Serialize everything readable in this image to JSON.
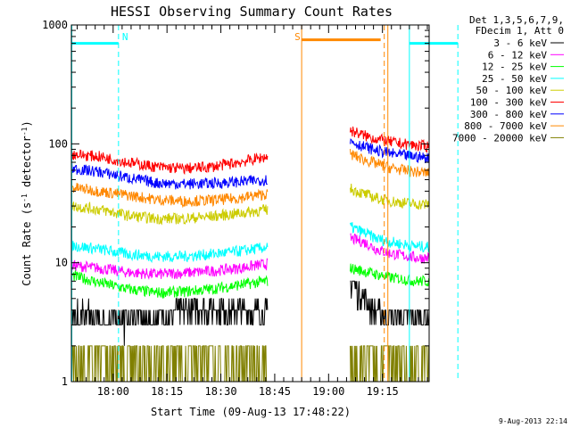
{
  "chart_data": {
    "type": "line",
    "title": "HESSI Observing Summary Count Rates",
    "xlabel": "Start Time (09-Aug-13 17:48:22)",
    "ylabel": "Count Rate (s⁻¹ detector⁻¹)",
    "y_scale": "log",
    "ylim": [
      1,
      1000
    ],
    "y_ticks": [
      {
        "value": 1,
        "label": "1"
      },
      {
        "value": 10,
        "label": "10"
      },
      {
        "value": 100,
        "label": "100"
      },
      {
        "value": 1000,
        "label": "1000"
      }
    ],
    "x_range_minutes": [
      "17:48",
      "19:28"
    ],
    "x_ticks": [
      {
        "minute": 1080,
        "label": "18:00"
      },
      {
        "minute": 1095,
        "label": "18:15"
      },
      {
        "minute": 1110,
        "label": "18:30"
      },
      {
        "minute": 1125,
        "label": "18:45"
      },
      {
        "minute": 1140,
        "label": "19:00"
      },
      {
        "minute": 1155,
        "label": "19:15"
      }
    ],
    "legend": {
      "placement": "right",
      "header": [
        "Det 1,3,5,6,7,9,",
        "FDecim 1, Att 0"
      ]
    },
    "data_gap": [
      "18:43",
      "19:06"
    ],
    "series": [
      {
        "name": "3 - 6 keV",
        "color": "#000000",
        "before": [
          3.5,
          3.3,
          3.3,
          3.4,
          4.0,
          4.2,
          4.0,
          3.8
        ],
        "after": [
          7.0,
          5.0,
          3.8,
          3.5,
          3.5,
          3.4,
          3.4
        ]
      },
      {
        "name": "6 - 12 keV",
        "color": "#ff00ff",
        "before": [
          9.5,
          9.0,
          8.3,
          8.0,
          8.2,
          8.5,
          9.0,
          9.8
        ],
        "after": [
          16.0,
          15.0,
          13.0,
          12.0,
          11.5,
          11.0,
          11.0
        ]
      },
      {
        "name": "12 - 25 keV",
        "color": "#00ff00",
        "before": [
          7.8,
          6.8,
          6.0,
          5.6,
          5.7,
          6.0,
          6.5,
          7.0
        ],
        "after": [
          9.0,
          8.5,
          8.0,
          7.5,
          7.3,
          7.0,
          7.0
        ]
      },
      {
        "name": "25 - 50 keV",
        "color": "#00ffff",
        "before": [
          14.0,
          13.0,
          11.8,
          11.3,
          11.3,
          11.8,
          12.5,
          13.5
        ],
        "after": [
          20.0,
          18.0,
          16.0,
          15.0,
          14.3,
          13.8,
          13.5
        ]
      },
      {
        "name": "50 - 100 keV",
        "color": "#cccc00",
        "before": [
          30.0,
          28.0,
          25.0,
          23.5,
          23.5,
          24.5,
          26.0,
          28.0
        ],
        "after": [
          42.0,
          38.0,
          35.0,
          33.0,
          32.0,
          31.0,
          31.0
        ]
      },
      {
        "name": "100 - 300 keV",
        "color": "#ff0000",
        "before": [
          82.0,
          78.0,
          70.0,
          64.0,
          62.0,
          64.0,
          70.0,
          78.0
        ],
        "after": [
          130.0,
          118.0,
          110.0,
          104.0,
          100.0,
          97.0,
          95.0
        ]
      },
      {
        "name": "300 - 800 keV",
        "color": "#0000ff",
        "before": [
          62.0,
          58.0,
          52.0,
          47.0,
          46.0,
          46.5,
          48.0,
          50.0
        ],
        "after": [
          105.0,
          95.0,
          88.0,
          83.0,
          80.0,
          78.0,
          76.0
        ]
      },
      {
        "name": "800 - 7000 keV",
        "color": "#ff8800",
        "before": [
          43.0,
          40.0,
          37.0,
          34.0,
          33.0,
          33.5,
          35.0,
          38.0
        ],
        "after": [
          82.0,
          74.0,
          68.0,
          63.0,
          60.0,
          58.0,
          57.0
        ]
      },
      {
        "name": "7000 - 20000 keV",
        "color": "#808000",
        "before": [
          1.5,
          1.5,
          1.0,
          1.0,
          1.0,
          1.0,
          1.0,
          1.0
        ],
        "after": [
          1.0,
          1.5,
          1.5,
          1.0,
          1.0,
          1.5,
          1.5
        ]
      }
    ],
    "annotations": [
      {
        "label": "N",
        "color": "#00ffff",
        "text_minute": 1082.5,
        "lines": [
          {
            "minute": 1068.5,
            "style": "solid"
          },
          {
            "minute": 1081.5,
            "style": "dashed"
          },
          {
            "minute": 1162.5,
            "style": "solid"
          },
          {
            "minute": 1176,
            "style": "dashed"
          }
        ],
        "bars": [
          {
            "from": 1068.5,
            "to": 1081.5,
            "value": 700
          },
          {
            "from": 1162.5,
            "to": 1176,
            "value": 700
          }
        ]
      },
      {
        "label": "S",
        "color": "#ff8800",
        "text_minute": 1130.5,
        "lines": [
          {
            "minute": 1132.5,
            "style": "solid"
          },
          {
            "minute": 1155.5,
            "style": "dashed"
          },
          {
            "minute": 1156.5,
            "style": "solid"
          }
        ],
        "bars": [
          {
            "from": 1132.5,
            "to": 1154.5,
            "value": 750
          }
        ]
      }
    ]
  },
  "timestamp": "9-Aug-2013 22:14"
}
